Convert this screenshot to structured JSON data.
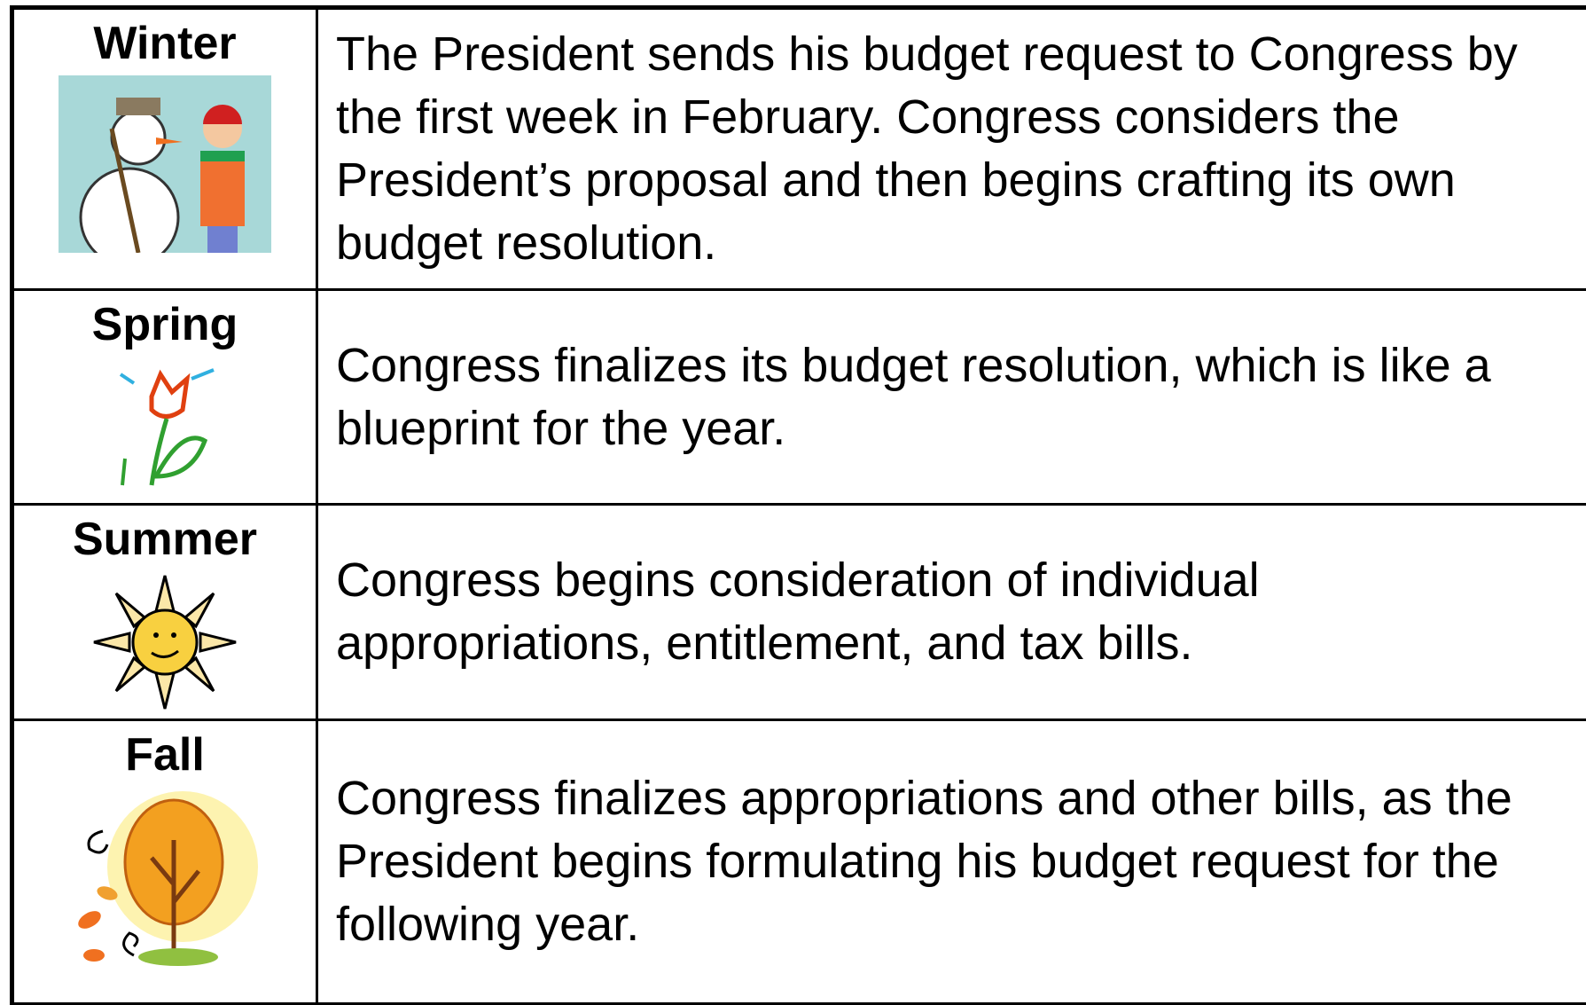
{
  "rows": [
    {
      "season": "Winter",
      "text": "The President sends his budget request to Congress by the first week in February.  Congress considers the President’s proposal and then begins crafting its own budget resolution."
    },
    {
      "season": "Spring",
      "text": "Congress finalizes its budget resolution, which is like a blueprint for the year."
    },
    {
      "season": "Summer",
      "text": "Congress begins consideration of individual appropriations, entitlement, and tax bills."
    },
    {
      "season": "Fall",
      "text": "Congress finalizes appropriations and other bills, as the President begins formulating his budget request for the following year."
    }
  ]
}
